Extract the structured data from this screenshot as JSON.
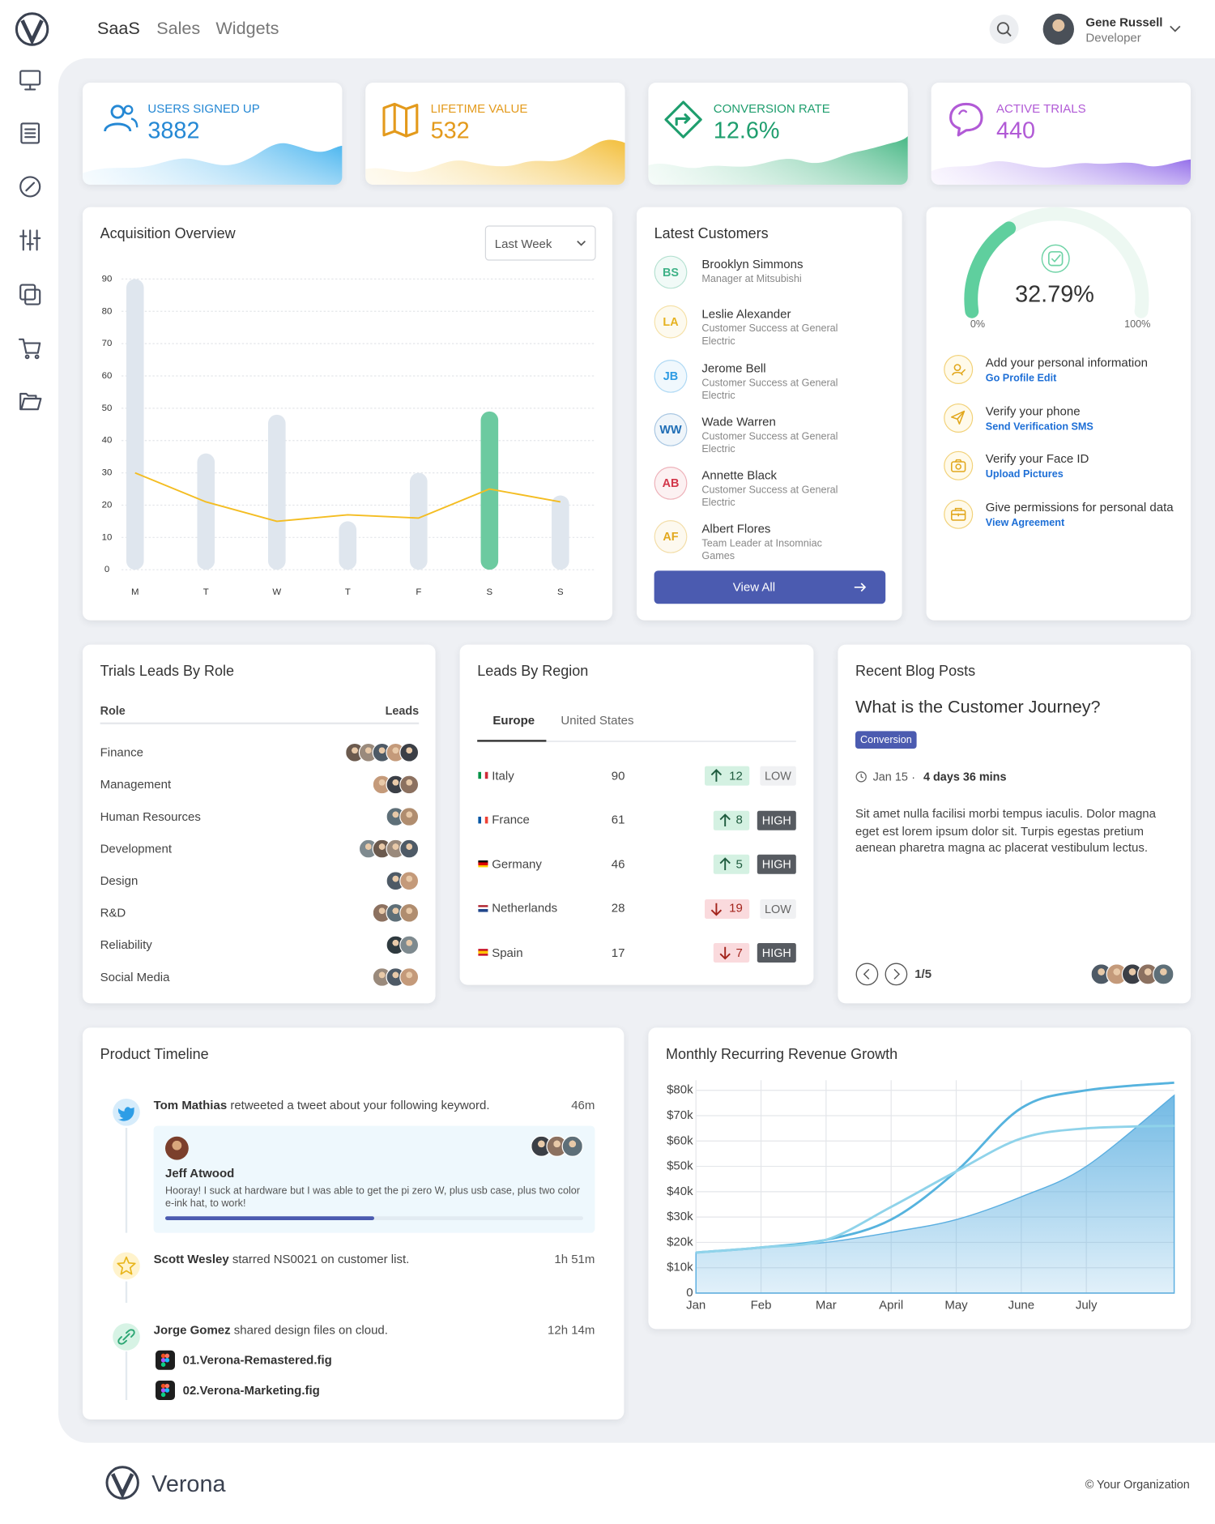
{
  "topbar": {
    "nav": [
      "SaaS",
      "Sales",
      "Widgets"
    ],
    "user": {
      "name": "Gene Russell",
      "role": "Developer"
    }
  },
  "stats": [
    {
      "label": "USERS SIGNED UP",
      "value": "3882",
      "color": "#2588d4",
      "gradient": [
        "#e3f3fd",
        "#49b5ef"
      ]
    },
    {
      "label": "LIFETIME VALUE",
      "value": "532",
      "color": "#e39a1c",
      "gradient": [
        "#fdf1cf",
        "#f3bf3c"
      ]
    },
    {
      "label": "CONVERSION RATE",
      "value": "12.6%",
      "color": "#1f9e6e",
      "gradient": [
        "#dcf3e8",
        "#48b886"
      ]
    },
    {
      "label": "ACTIVE TRIALS",
      "value": "440",
      "color": "#b15ad6",
      "gradient": [
        "#efe6fc",
        "#9570ea"
      ]
    }
  ],
  "acquisition": {
    "period": "Last Week"
  },
  "chart_data": [
    {
      "type": "bar",
      "title": "Acquisition Overview",
      "categories": [
        "M",
        "T",
        "W",
        "T",
        "F",
        "S",
        "S"
      ],
      "series": [
        {
          "type": "bar",
          "values": [
            90,
            36,
            48,
            15,
            30,
            49,
            23
          ],
          "colors": [
            "#dfe6ee",
            "#dfe6ee",
            "#dfe6ee",
            "#dfe6ee",
            "#dfe6ee",
            "#6ccaa0",
            "#dfe6ee"
          ]
        },
        {
          "type": "line",
          "color": "#f4bd22",
          "values": [
            30,
            21,
            15,
            17,
            16,
            25,
            21
          ]
        }
      ],
      "ylim": [
        0,
        90
      ],
      "yticks": [
        0,
        10,
        20,
        30,
        40,
        50,
        60,
        70,
        80,
        90
      ],
      "grid": true
    },
    {
      "type": "line",
      "title": "Monthly Recurring Revenue Growth",
      "x": [
        0,
        1,
        2,
        3,
        4,
        5,
        6,
        7.35
      ],
      "series": [
        {
          "fill": true,
          "color": "#5aaee0",
          "values": [
            16000,
            18000,
            20000,
            24000,
            29000,
            38000,
            50000,
            78000
          ]
        },
        {
          "color": "#56b3de",
          "values": [
            16000,
            18000,
            21000,
            29000,
            48000,
            73000,
            80000,
            83000
          ]
        },
        {
          "color": "#8fd3ea",
          "values": [
            16000,
            18000,
            21000,
            34000,
            48000,
            61000,
            65000,
            66000
          ]
        }
      ],
      "xlim": [
        0,
        7.35
      ],
      "xticks": [
        {
          "value": 0,
          "label": "Jan"
        },
        {
          "value": 1,
          "label": "Feb"
        },
        {
          "value": 2,
          "label": "Mar"
        },
        {
          "value": 3,
          "label": "April"
        },
        {
          "value": 4,
          "label": "May"
        },
        {
          "value": 5,
          "label": "June"
        },
        {
          "value": 6,
          "label": "July"
        }
      ],
      "ylim": [
        0,
        84000
      ],
      "yticks": [
        0,
        {
          "value": 10000,
          "label": "$10k"
        },
        {
          "value": 20000,
          "label": "$20k"
        },
        {
          "value": 30000,
          "label": "$30k"
        },
        {
          "value": 40000,
          "label": "$40k"
        },
        {
          "value": 50000,
          "label": "$50k"
        },
        {
          "value": 60000,
          "label": "$60k"
        },
        {
          "value": 70000,
          "label": "$70k"
        },
        {
          "value": 80000,
          "label": "$80k"
        }
      ],
      "grid": true
    },
    {
      "type": "gauge",
      "value": 32.79,
      "value_label": "32.79%",
      "color": "#5fcf9e",
      "ylim": [
        0,
        100
      ],
      "yticks": [
        {
          "value": 0,
          "label": "0%"
        },
        {
          "value": 100,
          "label": "100%"
        }
      ]
    }
  ],
  "customers": {
    "title": "Latest Customers",
    "button": "View All",
    "items": [
      {
        "initials": "BS",
        "name": "Brooklyn Simmons",
        "role": "Manager at Mitsubishi",
        "color": "#3fb287"
      },
      {
        "initials": "LA",
        "name": "Leslie Alexander",
        "role": "Customer Success at General Electric",
        "color": "#e6b21f"
      },
      {
        "initials": "JB",
        "name": "Jerome Bell",
        "role": "Customer Success at General Electric",
        "color": "#2d9be3"
      },
      {
        "initials": "WW",
        "name": "Wade Warren",
        "role": "Customer Success at General Electric",
        "color": "#1e6db5"
      },
      {
        "initials": "AB",
        "name": "Annette Black",
        "role": "Customer Success at General Electric",
        "color": "#d2364a"
      },
      {
        "initials": "AF",
        "name": "Albert Flores",
        "role": "Team Leader at Insomniac Games",
        "color": "#e2a81e"
      }
    ]
  },
  "tasks": [
    {
      "title": "Add your personal information",
      "link": "Go Profile Edit"
    },
    {
      "title": "Verify your phone",
      "link": "Send Verification SMS"
    },
    {
      "title": "Verify your Face ID",
      "link": "Upload Pictures"
    },
    {
      "title": "Give permissions for personal data",
      "link": "View Agreement"
    }
  ],
  "roles": {
    "title": "Trials Leads By Role",
    "columns": [
      "Role",
      "Leads"
    ],
    "rows": [
      "Finance",
      "Management",
      "Human Resources",
      "Development",
      "Design",
      "R&D",
      "Reliability",
      "Social Media"
    ]
  },
  "regions": {
    "title": "Leads By Region",
    "tabs": [
      "Europe",
      "United States"
    ],
    "rows": [
      {
        "country": "Italy",
        "value": 90,
        "change": 12,
        "trend": "up",
        "level": "LOW",
        "flag": [
          "#009246",
          "#ffffff",
          "#ce2b37"
        ]
      },
      {
        "country": "France",
        "value": 61,
        "change": 8,
        "trend": "up",
        "level": "HIGH",
        "flag": [
          "#0055a4",
          "#ffffff",
          "#ef4135"
        ]
      },
      {
        "country": "Germany",
        "value": 46,
        "change": 5,
        "trend": "up",
        "level": "HIGH",
        "flag": [
          "#000000",
          "#dd0000",
          "#ffce00"
        ]
      },
      {
        "country": "Netherlands",
        "value": 28,
        "change": 19,
        "trend": "down",
        "level": "LOW",
        "flag": [
          "#ae1c28",
          "#ffffff",
          "#21468b"
        ]
      },
      {
        "country": "Spain",
        "value": 17,
        "change": 7,
        "trend": "down",
        "level": "HIGH",
        "flag": [
          "#c60b1e",
          "#ffc400",
          "#c60b1e"
        ]
      }
    ]
  },
  "blog": {
    "title": "Recent Blog Posts",
    "headline": "What is the Customer Journey?",
    "tag": "Conversion",
    "date": "Jan 15",
    "separator": ".",
    "duration": "4 days 36 mins",
    "body": "Sit amet nulla facilisi morbi tempus iaculis. Dolor magna eget est lorem ipsum dolor sit. Turpis egestas pretium aenean pharetra magna ac placerat vestibulum lectus.",
    "pager": "1/5"
  },
  "timeline": {
    "title": "Product Timeline",
    "items": [
      {
        "actor": "Tom Mathias",
        "text": " retweeted a tweet about your following keyword.",
        "time": "46m",
        "tweet": {
          "author": "Jeff Atwood",
          "text": "Hooray! I suck at hardware but I was able to get the pi zero W, plus usb case, plus two color e-ink hat, to work!"
        }
      },
      {
        "actor": "Scott Wesley",
        "text": " starred NS0021 on customer list.",
        "time": "1h 51m"
      },
      {
        "actor": "Jorge Gomez",
        "text": " shared design files on cloud.",
        "time": "12h 14m",
        "files": [
          "01.Verona-Remastered.fig",
          "02.Verona-Marketing.fig"
        ]
      }
    ]
  },
  "footer": {
    "brand": "Verona",
    "copyright": "© Your Organization"
  }
}
